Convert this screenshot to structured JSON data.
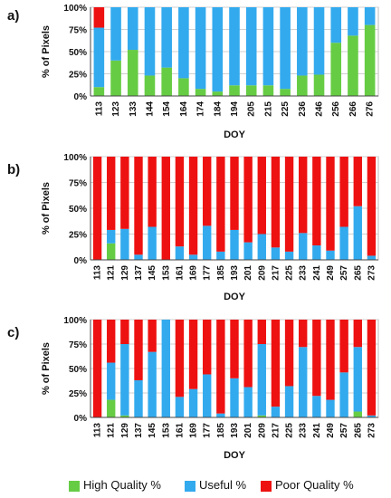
{
  "chart_data": [
    {
      "type": "bar",
      "stacked": true,
      "panel_label": "a)",
      "xlabel": "DOY",
      "ylabel": "% of Pixels",
      "ylim": [
        0,
        100
      ],
      "yticks": [
        "0%",
        "25%",
        "50%",
        "75%",
        "100%"
      ],
      "categories": [
        "113",
        "123",
        "133",
        "144",
        "154",
        "164",
        "174",
        "184",
        "194",
        "205",
        "215",
        "225",
        "236",
        "246",
        "256",
        "266",
        "276"
      ],
      "series": [
        {
          "name": "High Quality %",
          "color": "#66cc44",
          "values": [
            10,
            40,
            52,
            23,
            32,
            20,
            8,
            5,
            12,
            12,
            12,
            8,
            23,
            24,
            60,
            68,
            80
          ]
        },
        {
          "name": "Useful %",
          "color": "#33aaee",
          "values": [
            67,
            60,
            48,
            77,
            68,
            80,
            92,
            95,
            88,
            88,
            88,
            92,
            77,
            76,
            40,
            32,
            20
          ]
        },
        {
          "name": "Poor Quality %",
          "color": "#ee1111",
          "values": [
            23,
            0,
            0,
            0,
            0,
            0,
            0,
            0,
            0,
            0,
            0,
            0,
            0,
            0,
            0,
            0,
            0
          ]
        }
      ]
    },
    {
      "type": "bar",
      "stacked": true,
      "panel_label": "b)",
      "xlabel": "DOY",
      "ylabel": "% of Pixels",
      "ylim": [
        0,
        100
      ],
      "yticks": [
        "0%",
        "25%",
        "50%",
        "75%",
        "100%"
      ],
      "categories": [
        "113",
        "121",
        "129",
        "137",
        "145",
        "153",
        "161",
        "169",
        "177",
        "185",
        "193",
        "201",
        "209",
        "217",
        "225",
        "233",
        "241",
        "249",
        "257",
        "265",
        "273"
      ],
      "series": [
        {
          "name": "High Quality %",
          "color": "#66cc44",
          "values": [
            0,
            16,
            0,
            0,
            0,
            0,
            0,
            0,
            0,
            0,
            0,
            0,
            0,
            0,
            0,
            0,
            0,
            0,
            0,
            0,
            0
          ]
        },
        {
          "name": "Useful %",
          "color": "#33aaee",
          "values": [
            0,
            13,
            30,
            5,
            32,
            0,
            13,
            5,
            33,
            8,
            29,
            17,
            25,
            12,
            8,
            26,
            14,
            9,
            32,
            52,
            4
          ]
        },
        {
          "name": "Poor Quality %",
          "color": "#ee1111",
          "values": [
            100,
            71,
            70,
            95,
            68,
            100,
            87,
            95,
            67,
            92,
            71,
            83,
            75,
            88,
            92,
            74,
            86,
            91,
            68,
            48,
            96
          ]
        }
      ]
    },
    {
      "type": "bar",
      "stacked": true,
      "panel_label": "c)",
      "xlabel": "DOY",
      "ylabel": "% of Pixels",
      "ylim": [
        0,
        100
      ],
      "yticks": [
        "0%",
        "25%",
        "50%",
        "75%",
        "100%"
      ],
      "categories": [
        "113",
        "121",
        "129",
        "137",
        "145",
        "153",
        "161",
        "169",
        "177",
        "185",
        "193",
        "201",
        "209",
        "217",
        "225",
        "233",
        "241",
        "249",
        "257",
        "265",
        "273"
      ],
      "series": [
        {
          "name": "High Quality %",
          "color": "#66cc44",
          "values": [
            0,
            18,
            2,
            0,
            0,
            0,
            0,
            0,
            0,
            0,
            0,
            0,
            2,
            0,
            0,
            0,
            0,
            0,
            0,
            6,
            0
          ]
        },
        {
          "name": "Useful %",
          "color": "#33aaee",
          "values": [
            0,
            38,
            73,
            38,
            67,
            100,
            21,
            29,
            44,
            4,
            40,
            31,
            73,
            11,
            32,
            72,
            22,
            18,
            46,
            66,
            2
          ]
        },
        {
          "name": "Poor Quality %",
          "color": "#ee1111",
          "values": [
            100,
            44,
            25,
            62,
            33,
            0,
            79,
            71,
            56,
            96,
            60,
            69,
            25,
            89,
            68,
            28,
            78,
            82,
            54,
            28,
            98
          ]
        }
      ]
    }
  ],
  "legend": {
    "items": [
      {
        "label": "High Quality %",
        "color": "#66cc44"
      },
      {
        "label": "Useful %",
        "color": "#33aaee"
      },
      {
        "label": "Poor Quality %",
        "color": "#ee1111"
      }
    ]
  }
}
